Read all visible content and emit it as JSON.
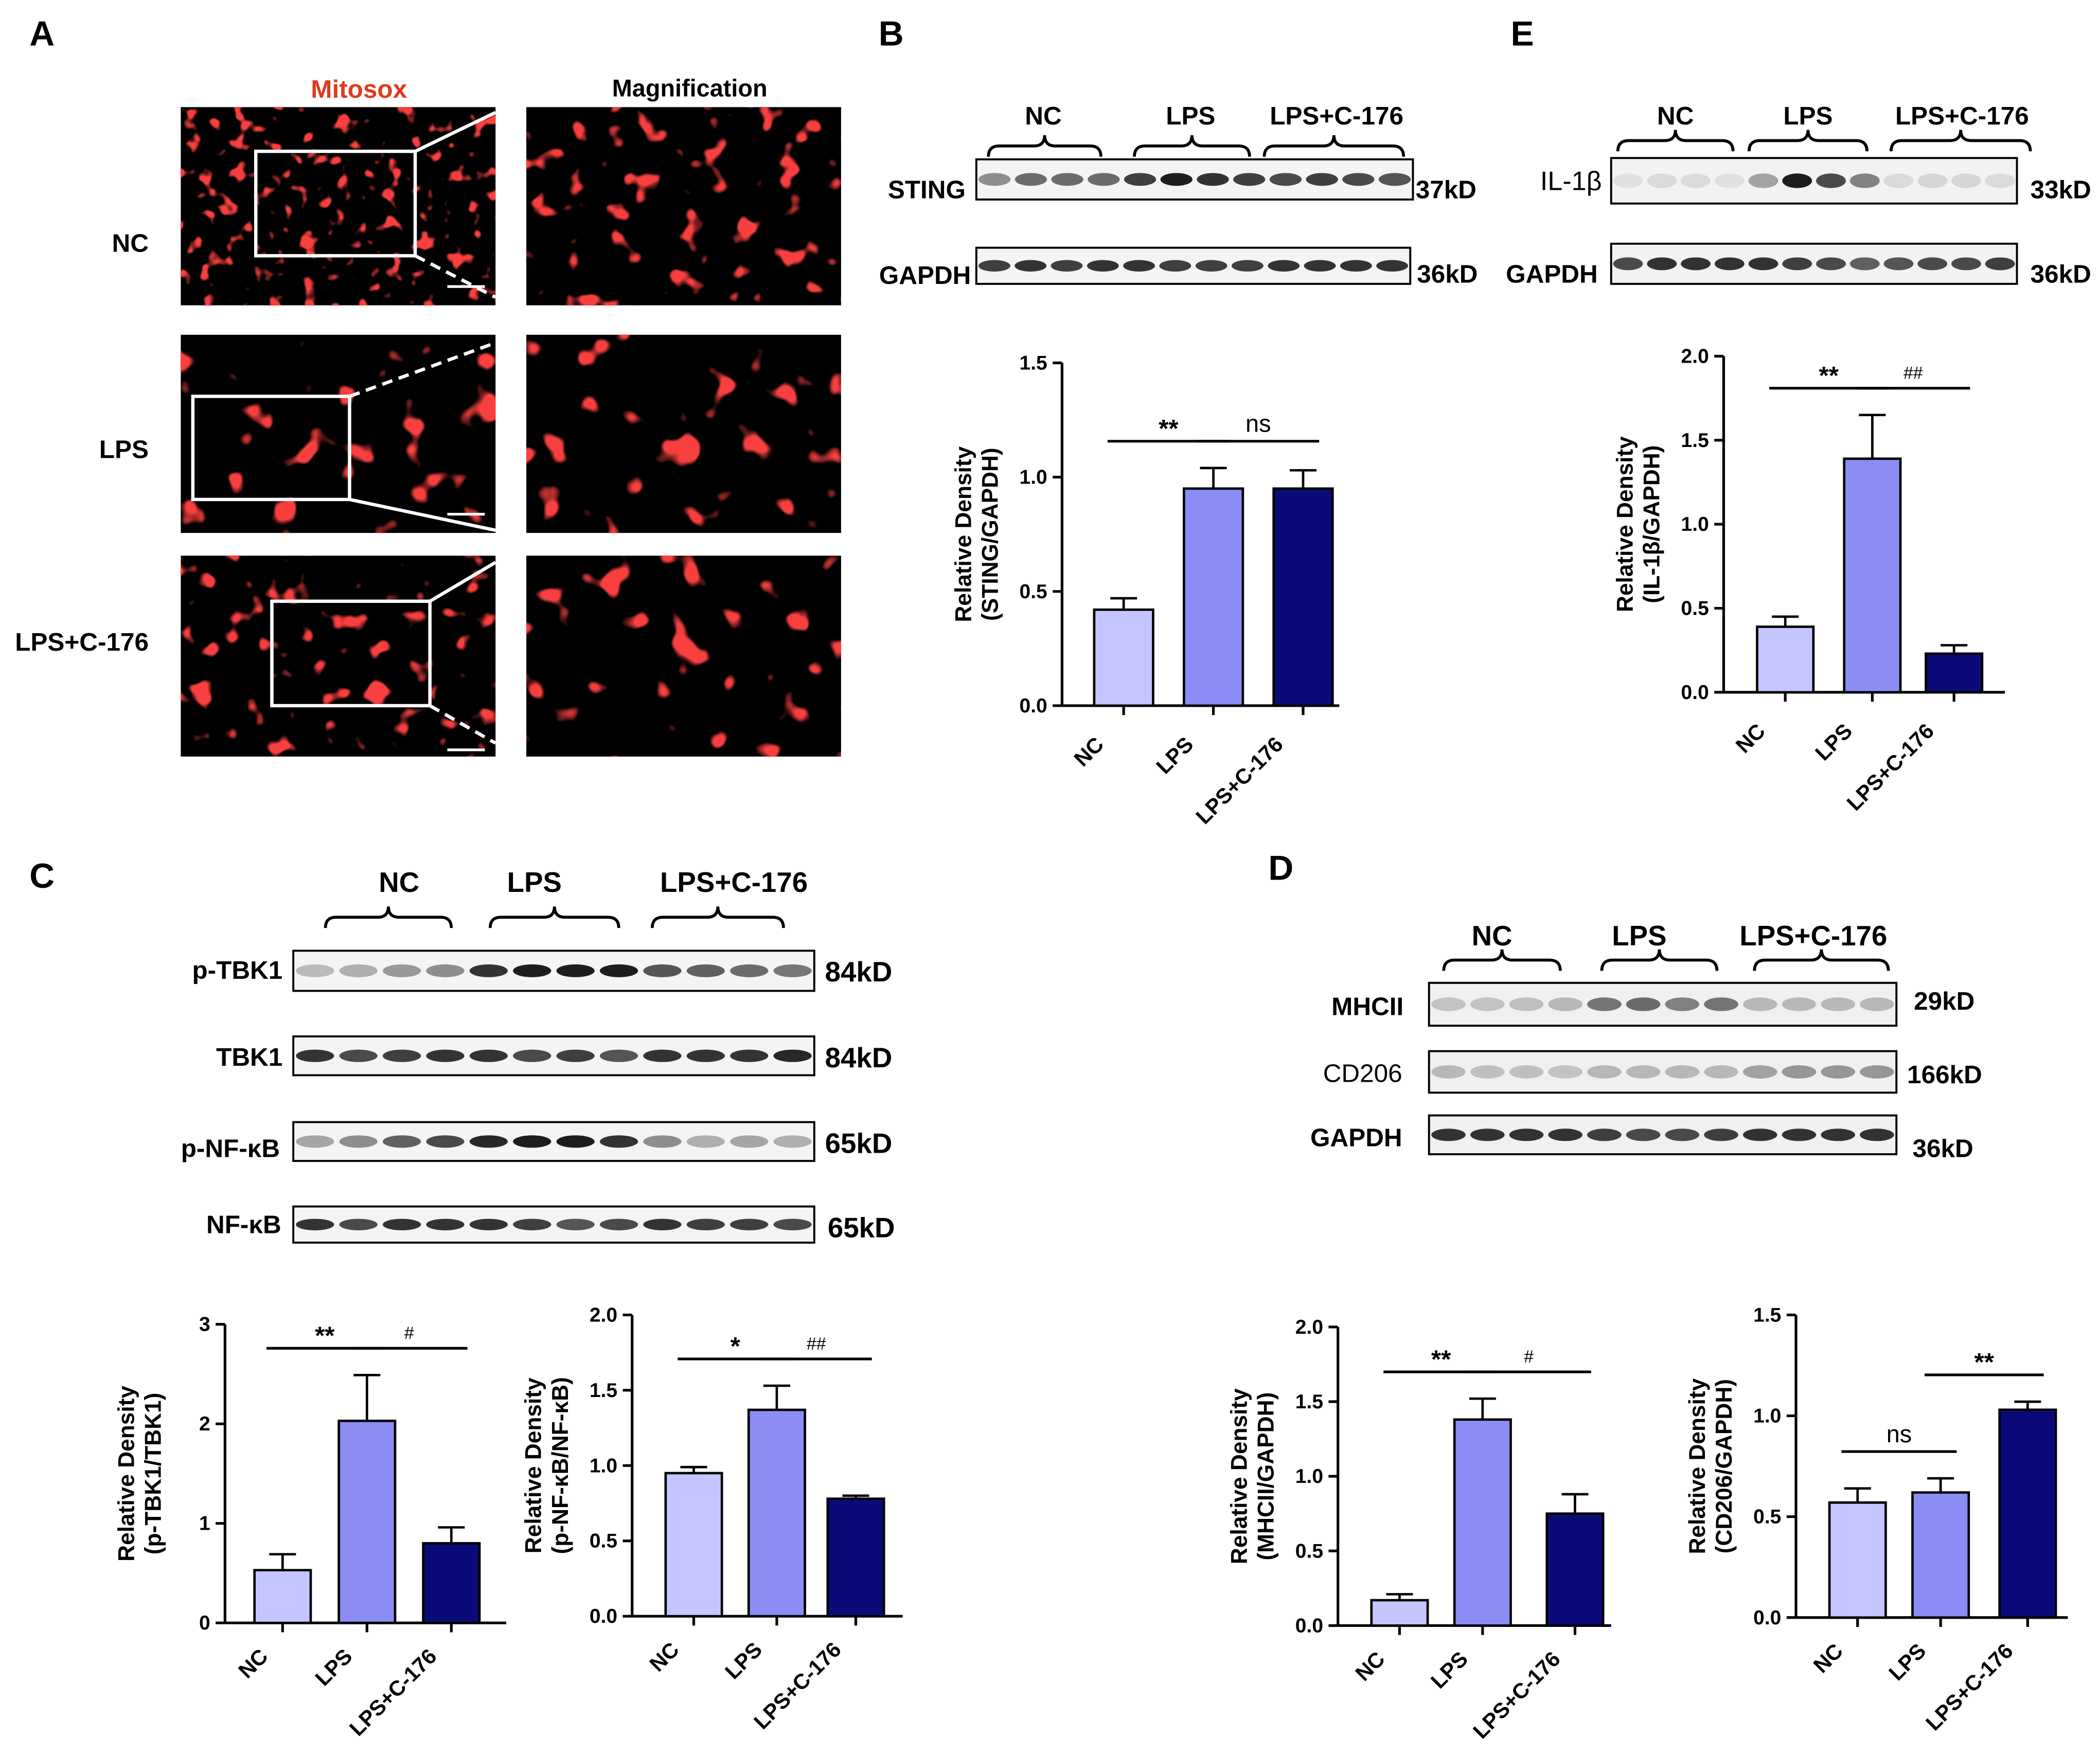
{
  "panel_letters": {
    "a": "A",
    "b": "B",
    "c": "C",
    "d": "D",
    "e": "E"
  },
  "panel_a": {
    "col_mitosox": "Mitosox",
    "col_magnification": "Magnification",
    "rows": [
      "NC",
      "LPS",
      "LPS+C-176"
    ],
    "mitosox_color": "#e03a1e"
  },
  "groups": {
    "nc": "NC",
    "lps": "LPS",
    "lps_c176": "LPS+C-176"
  },
  "blot_b": {
    "bands": [
      {
        "label": "STING",
        "kd": "37kD"
      },
      {
        "label": "GAPDH",
        "kd": "36kD"
      }
    ]
  },
  "blot_e": {
    "bands": [
      {
        "label": "IL-1β",
        "kd": "33kD"
      },
      {
        "label": "GAPDH",
        "kd": "36kD"
      }
    ]
  },
  "blot_c": {
    "bands": [
      {
        "label": "p-TBK1",
        "kd": "84kD"
      },
      {
        "label": "TBK1",
        "kd": "84kD"
      },
      {
        "label": "p-NF-κB",
        "kd": "65kD"
      },
      {
        "label": "NF-κB",
        "kd": "65kD"
      }
    ]
  },
  "blot_d": {
    "bands": [
      {
        "label": "MHCII",
        "kd": "29kD"
      },
      {
        "label": "CD206",
        "kd": "166kD"
      },
      {
        "label": "GAPDH",
        "kd": "36kD"
      }
    ]
  },
  "colors": {
    "nc": "#c5c5ff",
    "lps": "#8c8cf5",
    "lps_c176": "#0a0a78"
  },
  "chart_data": [
    {
      "id": "B",
      "type": "bar",
      "categories": [
        "NC",
        "LPS",
        "LPS+C-176"
      ],
      "values": [
        0.42,
        0.95,
        0.95
      ],
      "errors": [
        0.05,
        0.09,
        0.08
      ],
      "ylabel": [
        "Relative Density",
        "(STING/GAPDH)"
      ],
      "ylim": [
        0,
        1.5
      ],
      "yticks": [
        "0.0",
        "0.5",
        "1.0",
        "1.5"
      ],
      "significance": [
        {
          "from": 0,
          "to": 1,
          "label": "**"
        },
        {
          "from": 1,
          "to": 2,
          "label": "ns"
        }
      ]
    },
    {
      "id": "E",
      "type": "bar",
      "categories": [
        "NC",
        "LPS",
        "LPS+C-176"
      ],
      "values": [
        0.39,
        1.39,
        0.23
      ],
      "errors": [
        0.06,
        0.26,
        0.05
      ],
      "ylabel": [
        "Relative Density",
        "(IL-1β/GAPDH)"
      ],
      "ylim": [
        0,
        2.0
      ],
      "yticks": [
        "0.0",
        "0.5",
        "1.0",
        "1.5",
        "2.0"
      ],
      "significance": [
        {
          "from": 0,
          "to": 1,
          "label": "**"
        },
        {
          "from": 1,
          "to": 2,
          "label": "##"
        }
      ]
    },
    {
      "id": "C1",
      "type": "bar",
      "categories": [
        "NC",
        "LPS",
        "LPS+C-176"
      ],
      "values": [
        0.53,
        2.03,
        0.8
      ],
      "errors": [
        0.16,
        0.46,
        0.16
      ],
      "ylabel": [
        "Relative Density",
        "(p-TBK1/TBK1)"
      ],
      "ylim": [
        0,
        3
      ],
      "yticks": [
        "0",
        "1",
        "2",
        "3"
      ],
      "significance": [
        {
          "from": 0,
          "to": 1,
          "label": "**"
        },
        {
          "from": 1,
          "to": 2,
          "label": "#"
        }
      ]
    },
    {
      "id": "C2",
      "type": "bar",
      "categories": [
        "NC",
        "LPS",
        "LPS+C-176"
      ],
      "values": [
        0.95,
        1.37,
        0.78
      ],
      "errors": [
        0.04,
        0.16,
        0.02
      ],
      "ylabel": [
        "Relative Density",
        "(p-NF-κB/NF-κB)"
      ],
      "ylim": [
        0,
        2.0
      ],
      "yticks": [
        "0.0",
        "0.5",
        "1.0",
        "1.5",
        "2.0"
      ],
      "significance": [
        {
          "from": 0,
          "to": 1,
          "label": "*"
        },
        {
          "from": 1,
          "to": 2,
          "label": "##"
        }
      ]
    },
    {
      "id": "D1",
      "type": "bar",
      "categories": [
        "NC",
        "LPS",
        "LPS+C-176"
      ],
      "values": [
        0.17,
        1.38,
        0.75
      ],
      "errors": [
        0.04,
        0.14,
        0.13
      ],
      "ylabel": [
        "Relative Density",
        "(MHCII/GAPDH)"
      ],
      "ylim": [
        0,
        2.0
      ],
      "yticks": [
        "0.0",
        "0.5",
        "1.0",
        "1.5",
        "2.0"
      ],
      "significance": [
        {
          "from": 0,
          "to": 1,
          "label": "**"
        },
        {
          "from": 1,
          "to": 2,
          "label": "#"
        }
      ]
    },
    {
      "id": "D2",
      "type": "bar",
      "categories": [
        "NC",
        "LPS",
        "LPS+C-176"
      ],
      "values": [
        0.57,
        0.62,
        1.03
      ],
      "errors": [
        0.07,
        0.07,
        0.04
      ],
      "ylabel": [
        "Relative Density",
        "(CD206/GAPDH)"
      ],
      "ylim": [
        0,
        1.5
      ],
      "yticks": [
        "0.0",
        "0.5",
        "1.0",
        "1.5"
      ],
      "significance": [
        {
          "from": 0,
          "to": 1,
          "label": "ns"
        },
        {
          "from": 1,
          "to": 2,
          "label": "**"
        }
      ]
    }
  ]
}
